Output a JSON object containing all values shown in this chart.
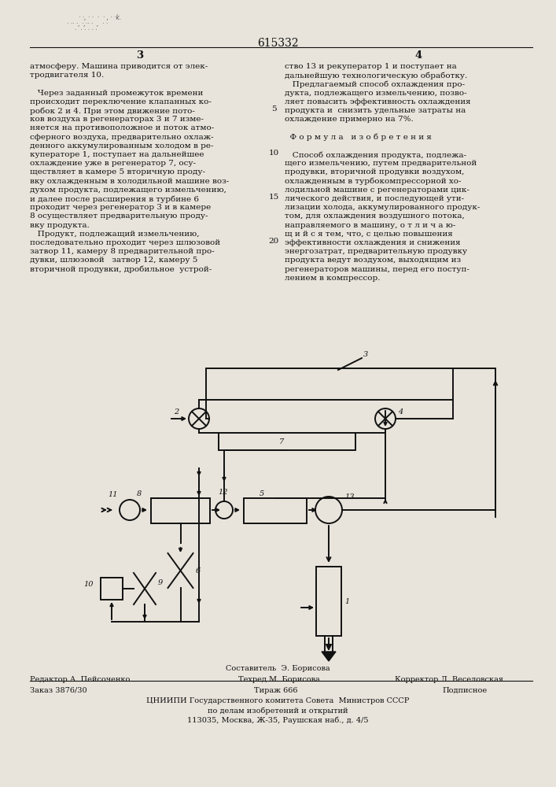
{
  "page_number": "615332",
  "col_left": "3",
  "col_right": "4",
  "bg_color": "#e8e4db",
  "text_color": "#111111",
  "footer_line1": "Составитель  Э. Борисова",
  "footer_line2_left": "Редактор А. Пейсоченко",
  "footer_line2_mid": "Техред М. Борисова",
  "footer_line2_right": "Корректор Л. Веселовская",
  "footer_line3_left": "Заказ 3876/30",
  "footer_line3_mid": "Тираж 666",
  "footer_line3_right": "Подписное",
  "footer_line4": "ЦНИИПИ Государственного комитета Совета  Министров СССР",
  "footer_line5": "по делам изобретений и открытий",
  "footer_line6": "113035, Москва, Ж-35, Раушская наб., д. 4/5"
}
